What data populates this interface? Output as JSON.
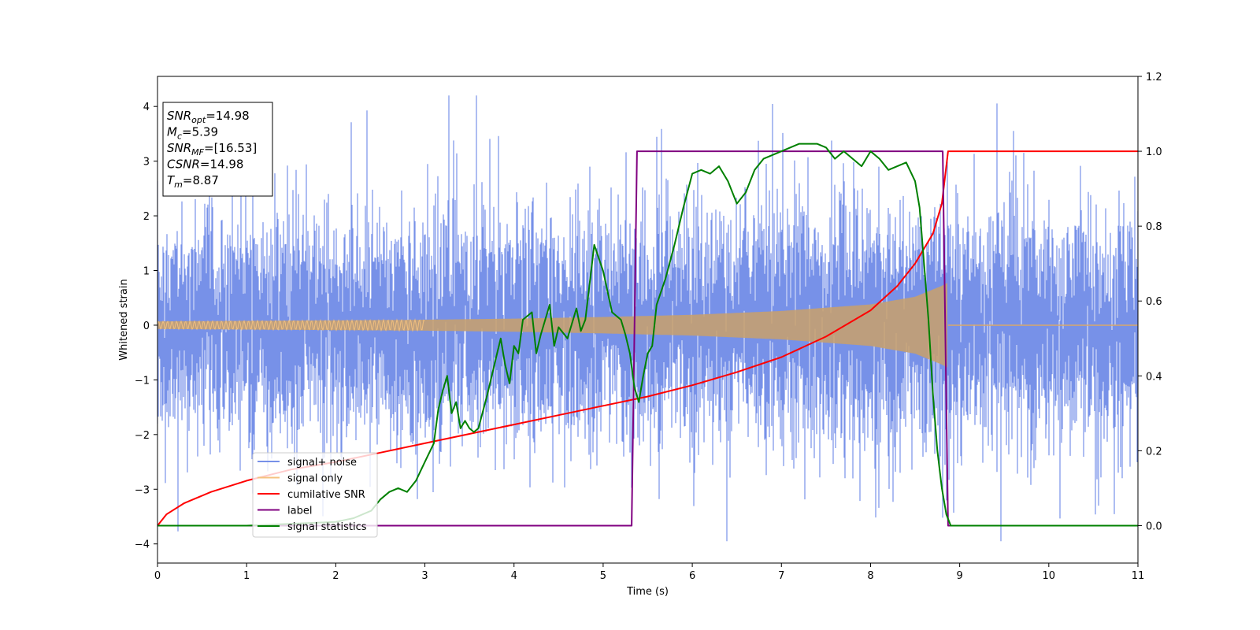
{
  "chart_data": {
    "type": "line",
    "xlabel": "Time (s)",
    "ylabel": "Whitened strain",
    "xlim": [
      0,
      11
    ],
    "ylim_left": [
      -4.35,
      4.55
    ],
    "ylim_right": [
      -0.1,
      1.2
    ],
    "x_ticks": [
      "0",
      "1",
      "2",
      "3",
      "4",
      "5",
      "6",
      "7",
      "8",
      "9",
      "10",
      "11"
    ],
    "y_left_ticks": [
      "−4",
      "−3",
      "−2",
      "−1",
      "0",
      "1",
      "2",
      "3",
      "4"
    ],
    "y_left_tick_values": [
      -4,
      -3,
      -2,
      -1,
      0,
      1,
      2,
      3,
      4
    ],
    "y_right_ticks": [
      "0.0",
      "0.2",
      "0.4",
      "0.6",
      "0.8",
      "1.0",
      "1.2"
    ],
    "y_right_tick_values": [
      0.0,
      0.2,
      0.4,
      0.6,
      0.8,
      1.0,
      1.2
    ],
    "grid": false,
    "legend_position": "lower-left",
    "info_box": [
      {
        "name": "SNR",
        "sub": "opt",
        "value": "=14.98"
      },
      {
        "name": "M",
        "sub": "c",
        "value": "=5.39"
      },
      {
        "name": "SNR",
        "sub": "MF",
        "value": "=[16.53]"
      },
      {
        "name": "CSNR",
        "sub": "",
        "value": "=14.98"
      },
      {
        "name": "T",
        "sub": "m",
        "value": "=8.87"
      }
    ],
    "series": [
      {
        "name": "signal+ noise",
        "axis": "left",
        "color": "#7791e8",
        "description_values": {
          "noise_std": 0.95,
          "duration_end": 11
        }
      },
      {
        "name": "signal only",
        "axis": "left",
        "color": "#f5c27f",
        "envelope": {
          "x": [
            0,
            1,
            2,
            3,
            4,
            5,
            6,
            7,
            8,
            8.5,
            8.8,
            8.87
          ],
          "amp": [
            0.07,
            0.08,
            0.09,
            0.1,
            0.12,
            0.15,
            0.19,
            0.26,
            0.38,
            0.52,
            0.72,
            0.78
          ]
        },
        "ends_at": 8.87
      },
      {
        "name": "cumilative SNR",
        "axis": "right",
        "color": "#ff0000",
        "x": [
          0,
          0.1,
          0.3,
          0.6,
          1,
          1.5,
          2,
          2.5,
          3,
          3.5,
          4,
          4.5,
          5,
          5.5,
          6,
          6.5,
          7,
          7.5,
          8,
          8.3,
          8.5,
          8.7,
          8.8,
          8.87,
          11
        ],
        "values": [
          0,
          0.03,
          0.06,
          0.09,
          0.12,
          0.15,
          0.17,
          0.195,
          0.22,
          0.245,
          0.27,
          0.295,
          0.32,
          0.345,
          0.375,
          0.41,
          0.45,
          0.505,
          0.575,
          0.64,
          0.7,
          0.78,
          0.86,
          1.0,
          1.0
        ]
      },
      {
        "name": "label",
        "axis": "right",
        "color": "#800080",
        "x": [
          0,
          5.32,
          5.38,
          8.81,
          8.87,
          11
        ],
        "values": [
          0,
          0,
          1,
          1,
          0,
          0
        ]
      },
      {
        "name": "signal statistics",
        "axis": "right",
        "color": "#008000",
        "x": [
          0,
          0.5,
          1,
          1.5,
          2,
          2.2,
          2.4,
          2.5,
          2.6,
          2.7,
          2.8,
          2.9,
          3.0,
          3.1,
          3.15,
          3.2,
          3.25,
          3.3,
          3.35,
          3.4,
          3.45,
          3.5,
          3.55,
          3.6,
          3.7,
          3.8,
          3.85,
          3.9,
          3.95,
          4.0,
          4.05,
          4.1,
          4.2,
          4.25,
          4.3,
          4.4,
          4.45,
          4.5,
          4.6,
          4.7,
          4.75,
          4.8,
          4.9,
          5.0,
          5.1,
          5.2,
          5.25,
          5.3,
          5.35,
          5.4,
          5.45,
          5.5,
          5.55,
          5.6,
          5.7,
          5.8,
          5.9,
          6.0,
          6.1,
          6.2,
          6.3,
          6.4,
          6.5,
          6.6,
          6.7,
          6.8,
          6.9,
          7.0,
          7.1,
          7.2,
          7.3,
          7.4,
          7.5,
          7.6,
          7.7,
          7.8,
          7.9,
          8.0,
          8.1,
          8.2,
          8.3,
          8.4,
          8.5,
          8.55,
          8.6,
          8.65,
          8.7,
          8.75,
          8.8,
          8.85,
          8.9,
          9.0,
          11
        ],
        "values": [
          0,
          0.0,
          0.0,
          0.005,
          0.01,
          0.02,
          0.04,
          0.07,
          0.09,
          0.1,
          0.09,
          0.12,
          0.17,
          0.22,
          0.31,
          0.36,
          0.4,
          0.3,
          0.33,
          0.26,
          0.28,
          0.26,
          0.25,
          0.26,
          0.35,
          0.45,
          0.5,
          0.43,
          0.38,
          0.48,
          0.46,
          0.55,
          0.57,
          0.46,
          0.51,
          0.59,
          0.48,
          0.53,
          0.5,
          0.58,
          0.52,
          0.55,
          0.75,
          0.68,
          0.57,
          0.55,
          0.51,
          0.46,
          0.37,
          0.33,
          0.4,
          0.46,
          0.48,
          0.59,
          0.66,
          0.75,
          0.85,
          0.94,
          0.95,
          0.94,
          0.96,
          0.92,
          0.86,
          0.89,
          0.95,
          0.98,
          0.99,
          1.0,
          1.01,
          1.02,
          1.02,
          1.02,
          1.01,
          0.98,
          1.0,
          0.98,
          0.96,
          1.0,
          0.98,
          0.95,
          0.96,
          0.97,
          0.92,
          0.85,
          0.7,
          0.55,
          0.35,
          0.2,
          0.1,
          0.03,
          0.0,
          0.0,
          0.0
        ]
      }
    ]
  }
}
